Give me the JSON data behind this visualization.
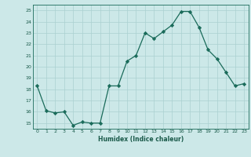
{
  "x": [
    0,
    1,
    2,
    3,
    4,
    5,
    6,
    7,
    8,
    9,
    10,
    11,
    12,
    13,
    14,
    15,
    16,
    17,
    18,
    19,
    20,
    21,
    22,
    23
  ],
  "y": [
    18.3,
    16.1,
    15.9,
    16.0,
    14.8,
    15.1,
    15.0,
    15.0,
    18.3,
    18.3,
    20.5,
    21.0,
    23.0,
    22.5,
    23.1,
    23.7,
    24.9,
    24.9,
    23.5,
    21.5,
    20.7,
    19.5,
    18.3,
    18.5
  ],
  "xlabel": "Humidex (Indice chaleur)",
  "xlim": [
    -0.5,
    23.5
  ],
  "ylim": [
    14.5,
    25.5
  ],
  "yticks": [
    15,
    16,
    17,
    18,
    19,
    20,
    21,
    22,
    23,
    24,
    25
  ],
  "xticks": [
    0,
    1,
    2,
    3,
    4,
    5,
    6,
    7,
    8,
    9,
    10,
    11,
    12,
    13,
    14,
    15,
    16,
    17,
    18,
    19,
    20,
    21,
    22,
    23
  ],
  "line_color": "#1a6b5a",
  "marker": "D",
  "marker_size": 2.2,
  "bg_color": "#cce8e8",
  "grid_color": "#aad0d0",
  "tick_color": "#1a5a4a",
  "label_color": "#1a5a4a"
}
